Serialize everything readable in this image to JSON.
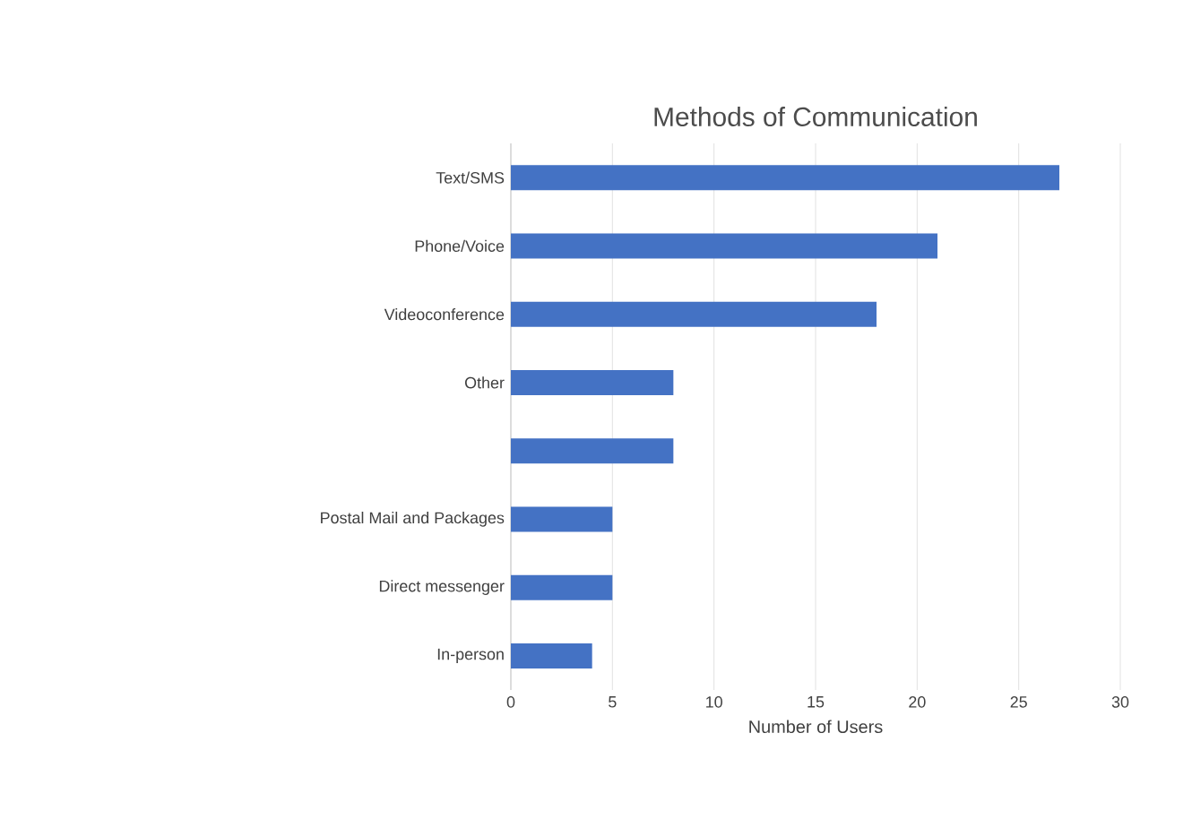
{
  "chart_data": {
    "type": "bar",
    "orientation": "horizontal",
    "title": "Methods of Communication",
    "xlabel": "Number of Users",
    "categories": [
      "Text/SMS",
      "Phone/Voice",
      "Videoconference",
      "Other",
      null,
      "Postal Mail and Packages",
      "Direct messenger",
      "In-person"
    ],
    "values": [
      27,
      21,
      18,
      8,
      8,
      5,
      5,
      4
    ],
    "color": "#4472c4",
    "xlim": [
      0,
      30
    ],
    "xticks": [
      0,
      5,
      10,
      15,
      20,
      25,
      30
    ],
    "grid": "x"
  }
}
